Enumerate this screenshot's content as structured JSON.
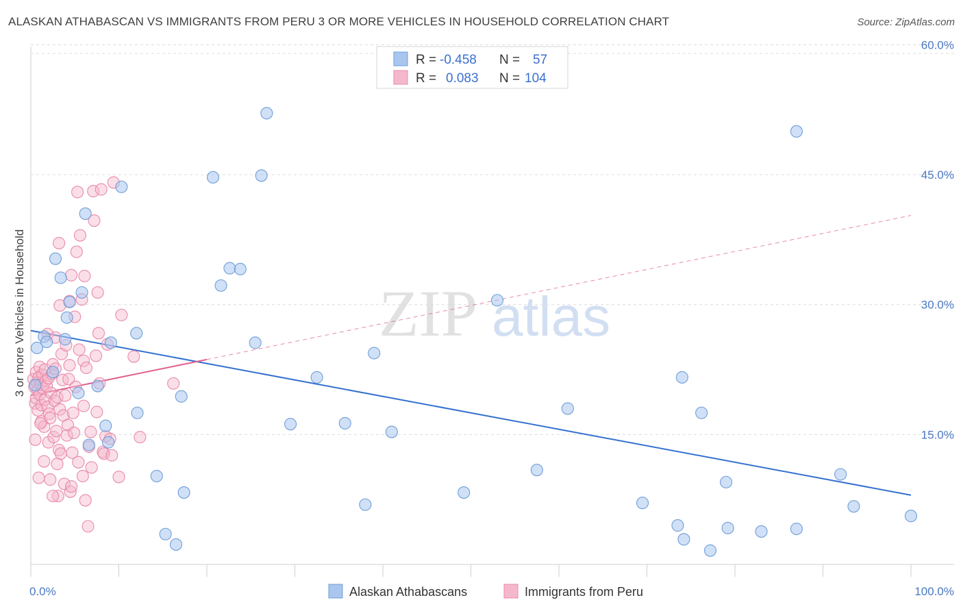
{
  "title": "ALASKAN ATHABASCAN VS IMMIGRANTS FROM PERU 3 OR MORE VEHICLES IN HOUSEHOLD CORRELATION CHART",
  "source": "Source: ZipAtlas.com",
  "watermark": {
    "zip": "ZIP",
    "atlas": "atlas"
  },
  "colors": {
    "blue_fill": "#a9c6ee",
    "blue_stroke": "#6f9ed9",
    "blue_line": "#3470d0",
    "pink_fill": "#f5b8cb",
    "pink_stroke": "#e98aa8",
    "pink_line": "#e0608e",
    "grid": "#dcdcdc",
    "axis_text": "#4a78c2"
  },
  "legend": {
    "r_label": "R =",
    "n_label": "N =",
    "rows": [
      {
        "r": "-0.458",
        "n": "57"
      },
      {
        "r": "0.083",
        "n": "104"
      }
    ]
  },
  "chart_data": {
    "type": "scatter",
    "xlabel": "",
    "ylabel": "3 or more Vehicles in Household",
    "xlim": [
      0,
      100
    ],
    "ylim": [
      0,
      65
    ],
    "x_tick_labels": [
      "0.0%",
      "100.0%"
    ],
    "y_ticks": [
      15,
      30,
      45,
      60
    ],
    "y_tick_labels": [
      "15.0%",
      "30.0%",
      "45.0%",
      "60.0%"
    ],
    "grid": true,
    "legend_position": "top-center",
    "series": [
      {
        "name": "Alaskan Athabascans",
        "color": "#a9c6ee",
        "trend": {
          "x0": 0,
          "y0": 27.0,
          "x1": 100,
          "y1": 8.0
        },
        "points": [
          [
            0.7,
            25.0
          ],
          [
            1.5,
            26.3
          ],
          [
            1.8,
            25.7
          ],
          [
            2.5,
            22.2
          ],
          [
            2.8,
            35.3
          ],
          [
            3.4,
            33.1
          ],
          [
            3.9,
            26.0
          ],
          [
            4.1,
            28.5
          ],
          [
            4.4,
            30.3
          ],
          [
            5.4,
            19.8
          ],
          [
            5.8,
            31.4
          ],
          [
            6.2,
            40.5
          ],
          [
            6.6,
            13.8
          ],
          [
            7.6,
            20.6
          ],
          [
            8.5,
            16.0
          ],
          [
            8.8,
            14.1
          ],
          [
            9.1,
            25.6
          ],
          [
            10.3,
            43.6
          ],
          [
            12.0,
            26.7
          ],
          [
            12.1,
            17.5
          ],
          [
            14.3,
            10.2
          ],
          [
            15.3,
            3.5
          ],
          [
            16.5,
            2.3
          ],
          [
            17.1,
            19.4
          ],
          [
            17.4,
            8.3
          ],
          [
            20.7,
            44.7
          ],
          [
            21.6,
            32.2
          ],
          [
            22.6,
            34.2
          ],
          [
            23.8,
            34.1
          ],
          [
            25.5,
            25.6
          ],
          [
            26.2,
            44.9
          ],
          [
            26.8,
            52.1
          ],
          [
            29.5,
            16.2
          ],
          [
            32.5,
            21.6
          ],
          [
            35.7,
            16.3
          ],
          [
            38.0,
            6.9
          ],
          [
            39.0,
            24.4
          ],
          [
            41.0,
            15.3
          ],
          [
            49.2,
            8.3
          ],
          [
            53.0,
            30.5
          ],
          [
            57.5,
            10.9
          ],
          [
            61.0,
            18.0
          ],
          [
            69.5,
            7.1
          ],
          [
            73.5,
            4.5
          ],
          [
            74.0,
            21.6
          ],
          [
            74.2,
            2.9
          ],
          [
            76.2,
            17.5
          ],
          [
            77.2,
            1.6
          ],
          [
            79.0,
            9.5
          ],
          [
            79.2,
            4.2
          ],
          [
            83.0,
            3.8
          ],
          [
            87.0,
            50.0
          ],
          [
            87.0,
            4.1
          ],
          [
            92.0,
            10.4
          ],
          [
            93.5,
            6.7
          ],
          [
            100.0,
            5.6
          ],
          [
            0.5,
            20.7
          ]
        ]
      },
      {
        "name": "Immigrants from Peru",
        "color": "#f5b8cb",
        "trend": {
          "x0": 0,
          "y0": 19.5,
          "x1": 100,
          "y1": 40.3
        },
        "points": [
          [
            0.3,
            21.4
          ],
          [
            0.4,
            20.5
          ],
          [
            0.5,
            18.6
          ],
          [
            0.6,
            19.2
          ],
          [
            0.6,
            22.2
          ],
          [
            0.7,
            21.0
          ],
          [
            0.8,
            17.8
          ],
          [
            0.8,
            20.1
          ],
          [
            0.9,
            21.6
          ],
          [
            1.0,
            19.6
          ],
          [
            1.0,
            22.8
          ],
          [
            1.1,
            20.8
          ],
          [
            1.2,
            16.5
          ],
          [
            1.2,
            18.4
          ],
          [
            1.3,
            21.9
          ],
          [
            1.4,
            20.3
          ],
          [
            1.5,
            15.9
          ],
          [
            1.6,
            22.5
          ],
          [
            1.6,
            19.0
          ],
          [
            1.7,
            21.2
          ],
          [
            1.8,
            20.6
          ],
          [
            1.9,
            18.2
          ],
          [
            2.0,
            14.1
          ],
          [
            2.0,
            21.5
          ],
          [
            2.1,
            17.4
          ],
          [
            2.2,
            16.9
          ],
          [
            2.3,
            19.8
          ],
          [
            2.4,
            22.0
          ],
          [
            2.5,
            23.1
          ],
          [
            2.6,
            14.7
          ],
          [
            2.7,
            18.9
          ],
          [
            2.8,
            22.6
          ],
          [
            2.9,
            15.4
          ],
          [
            3.0,
            11.6
          ],
          [
            3.0,
            19.3
          ],
          [
            3.1,
            7.9
          ],
          [
            3.2,
            13.2
          ],
          [
            3.3,
            17.9
          ],
          [
            3.4,
            12.8
          ],
          [
            3.5,
            24.3
          ],
          [
            3.6,
            21.3
          ],
          [
            3.7,
            17.2
          ],
          [
            3.8,
            9.3
          ],
          [
            3.9,
            19.5
          ],
          [
            4.0,
            25.3
          ],
          [
            4.1,
            14.9
          ],
          [
            4.2,
            16.1
          ],
          [
            4.3,
            21.4
          ],
          [
            4.4,
            30.4
          ],
          [
            4.5,
            8.4
          ],
          [
            4.6,
            9.0
          ],
          [
            4.7,
            12.9
          ],
          [
            4.8,
            17.5
          ],
          [
            4.9,
            15.2
          ],
          [
            5.0,
            28.6
          ],
          [
            5.1,
            20.5
          ],
          [
            5.2,
            36.1
          ],
          [
            5.3,
            43.0
          ],
          [
            5.4,
            11.8
          ],
          [
            5.5,
            24.8
          ],
          [
            5.6,
            38.0
          ],
          [
            5.8,
            30.6
          ],
          [
            5.9,
            10.2
          ],
          [
            6.0,
            23.5
          ],
          [
            6.1,
            33.3
          ],
          [
            6.2,
            7.4
          ],
          [
            6.3,
            22.7
          ],
          [
            6.5,
            4.4
          ],
          [
            6.6,
            13.6
          ],
          [
            6.8,
            15.3
          ],
          [
            6.9,
            11.2
          ],
          [
            7.1,
            43.1
          ],
          [
            7.2,
            39.7
          ],
          [
            7.4,
            24.1
          ],
          [
            7.5,
            17.6
          ],
          [
            7.6,
            31.4
          ],
          [
            7.7,
            26.7
          ],
          [
            7.8,
            20.9
          ],
          [
            8.0,
            43.3
          ],
          [
            8.2,
            13.0
          ],
          [
            8.3,
            12.8
          ],
          [
            8.5,
            14.8
          ],
          [
            8.7,
            25.4
          ],
          [
            9.0,
            14.5
          ],
          [
            9.2,
            12.6
          ],
          [
            9.4,
            44.1
          ],
          [
            10.0,
            10.1
          ],
          [
            10.3,
            28.8
          ],
          [
            11.7,
            24.0
          ],
          [
            12.4,
            14.7
          ],
          [
            16.2,
            20.9
          ],
          [
            3.2,
            37.1
          ],
          [
            1.9,
            26.6
          ],
          [
            2.2,
            9.8
          ],
          [
            4.4,
            23.0
          ],
          [
            0.5,
            14.4
          ],
          [
            1.1,
            16.3
          ],
          [
            1.5,
            11.9
          ],
          [
            2.5,
            7.9
          ],
          [
            3.3,
            29.9
          ],
          [
            4.6,
            33.4
          ],
          [
            6.0,
            18.3
          ],
          [
            0.9,
            10.0
          ],
          [
            2.8,
            26.2
          ]
        ]
      }
    ]
  }
}
